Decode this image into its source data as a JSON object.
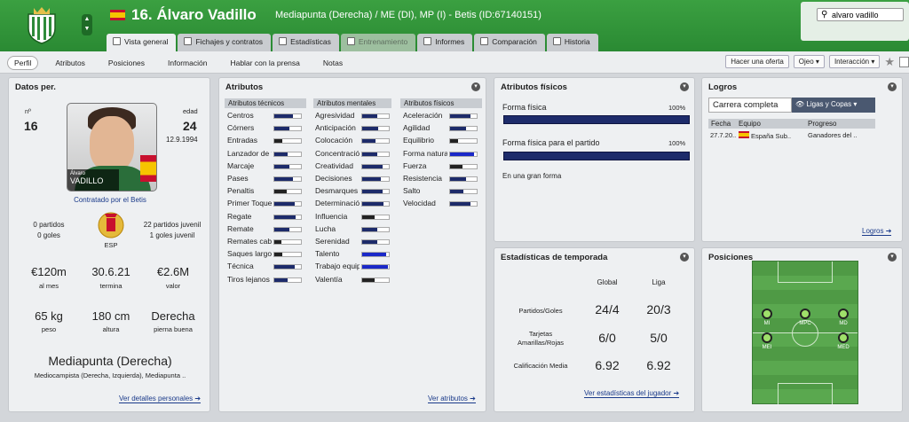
{
  "header": {
    "shirt_number_name": "16. Álvaro Vadillo",
    "subtitle": "Mediapunta (Derecha) / ME (DI), MP (I) - Betis (ID:67140151)",
    "search_value": "alvaro vadillo"
  },
  "tabs": [
    {
      "label": "Vista general"
    },
    {
      "label": "Fichajes y contratos"
    },
    {
      "label": "Estadísticas"
    },
    {
      "label": "Entrenamiento"
    },
    {
      "label": "Informes"
    },
    {
      "label": "Comparación"
    },
    {
      "label": "Historia"
    }
  ],
  "subtabs": [
    "Perfil",
    "Atributos",
    "Posiciones",
    "Información",
    "Hablar con la prensa",
    "Notas"
  ],
  "actions": {
    "offer": "Hacer una oferta",
    "scout": "Ojeo",
    "interaction": "Interacción"
  },
  "datos": {
    "title": "Datos per.",
    "num_label": "nº",
    "num": "16",
    "age_label": "edad",
    "age": "24",
    "dob": "12.9.1994",
    "photo_first": "Álvaro",
    "photo_last": "VADILLO",
    "contract_with": "Contratado por el Betis",
    "left_apps": "0 partidos",
    "left_goals": "0 goles",
    "nation": "ESP",
    "youth_apps": "22 partidos juvenil",
    "youth_goals": "1 goles juvenil",
    "wage": "€120m",
    "wage_label": "al mes",
    "expires": "30.6.21",
    "expires_label": "termina",
    "value": "€2.6M",
    "value_label": "valor",
    "weight": "65 kg",
    "weight_label": "peso",
    "height": "180 cm",
    "height_label": "altura",
    "foot": "Derecha",
    "foot_label": "pierna buena",
    "position": "Mediapunta (Derecha)",
    "position_detail": "Mediocampista (Derecha, Izquierda), Mediapunta ..",
    "link": "Ver detalles personales"
  },
  "atributos": {
    "title": "Atributos",
    "tech_header": "Atributos técnicos",
    "mental_header": "Atributos mentales",
    "phys_header": "Atributos físicos",
    "link": "Ver atributos",
    "tech": [
      {
        "l": "Centros",
        "v": 0.7
      },
      {
        "l": "Córners",
        "v": 0.55
      },
      {
        "l": "Entradas",
        "v": 0.3
      },
      {
        "l": "Lanzador de fa",
        "v": 0.5
      },
      {
        "l": "Marcaje",
        "v": 0.55
      },
      {
        "l": "Pases",
        "v": 0.7
      },
      {
        "l": "Penaltis",
        "v": 0.45
      },
      {
        "l": "Primer Toque",
        "v": 0.75
      },
      {
        "l": "Regate",
        "v": 0.8
      },
      {
        "l": "Remate",
        "v": 0.55
      },
      {
        "l": "Remates cabe",
        "v": 0.25
      },
      {
        "l": "Saques largos",
        "v": 0.3
      },
      {
        "l": "Técnica",
        "v": 0.75
      },
      {
        "l": "Tiros lejanos",
        "v": 0.5
      }
    ],
    "mental": [
      {
        "l": "Agresividad",
        "v": 0.55
      },
      {
        "l": "Anticipación",
        "v": 0.6
      },
      {
        "l": "Colocación",
        "v": 0.5
      },
      {
        "l": "Concentración",
        "v": 0.55
      },
      {
        "l": "Creatividad",
        "v": 0.75
      },
      {
        "l": "Decisiones",
        "v": 0.7
      },
      {
        "l": "Desmarques",
        "v": 0.75
      },
      {
        "l": "Determinación",
        "v": 0.8
      },
      {
        "l": "Influencia",
        "v": 0.45
      },
      {
        "l": "Lucha",
        "v": 0.55
      },
      {
        "l": "Serenidad",
        "v": 0.55
      },
      {
        "l": "Talento",
        "v": 0.9
      },
      {
        "l": "Trabajo equipo",
        "v": 0.95
      },
      {
        "l": "Valentía",
        "v": 0.45
      }
    ],
    "phys": [
      {
        "l": "Aceleración",
        "v": 0.75
      },
      {
        "l": "Agilidad",
        "v": 0.6
      },
      {
        "l": "Equilibrio",
        "v": 0.3
      },
      {
        "l": "Forma natural",
        "v": 0.9
      },
      {
        "l": "Fuerza",
        "v": 0.45
      },
      {
        "l": "Resistencia",
        "v": 0.6
      },
      {
        "l": "Salto",
        "v": 0.5
      },
      {
        "l": "Velocidad",
        "v": 0.75
      }
    ]
  },
  "fisicos": {
    "title": "Atributos físicos",
    "f1": "Forma física",
    "f1v": "100%",
    "f2": "Forma física para el partido",
    "f2v": "100%",
    "status": "En una gran forma"
  },
  "logros": {
    "title": "Logros",
    "btn1": "Carrera completa",
    "btn2": "Ligas y Copas",
    "h_date": "Fecha",
    "h_team": "Equipo",
    "h_prog": "Progreso",
    "r_date": "27.7.20..",
    "r_team": "España Sub..",
    "r_prog": "Ganadores del ..",
    "link": "Logros"
  },
  "stats": {
    "title": "Estadísticas de temporada",
    "col1": "Global",
    "col2": "Liga",
    "r1": "Partidos/Goles",
    "r1a": "24/4",
    "r1b": "20/3",
    "r2a_l": "Tarjetas",
    "r2b_l": "Amarillas/Rojas",
    "r2a": "6/0",
    "r2b": "5/0",
    "r3": "Calificación Media",
    "r3a": "6.92",
    "r3b": "6.92",
    "link": "Ver estadísticas del jugador"
  },
  "posiciones": {
    "title": "Posiciones",
    "labels": [
      "MI",
      "MPC",
      "MD",
      "MEI",
      "MED"
    ]
  },
  "colors": {
    "green": "#2f9138",
    "bar_navy": "#1d2b6a",
    "bar_blue": "#1a28c8",
    "bar_dark": "#222"
  }
}
